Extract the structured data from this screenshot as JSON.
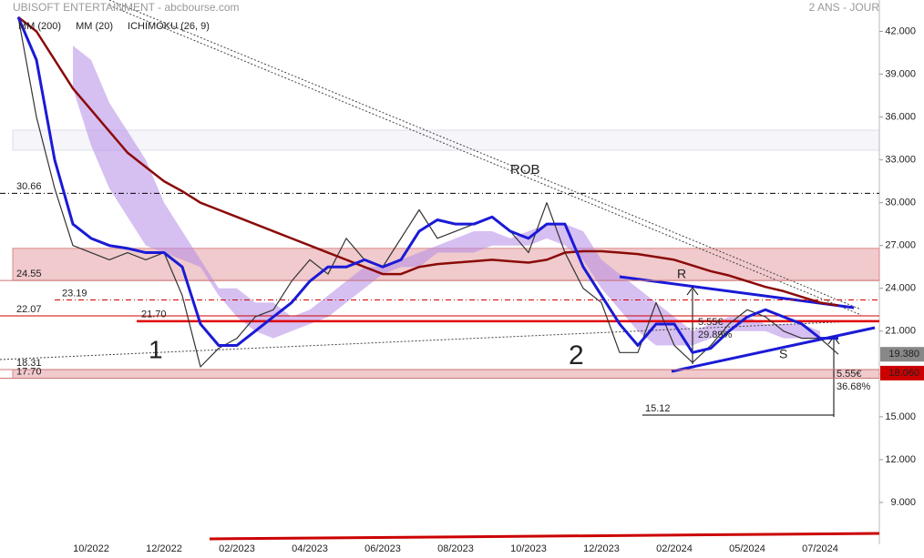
{
  "chart_data": {
    "type": "line",
    "title": "UBISOFT ENTERTAINMENT - abcbourse.com",
    "period": "2 ANS - JOUR",
    "categories": [
      null,
      null,
      null,
      null,
      "10/2022",
      null,
      null,
      null,
      "12/2022",
      null,
      null,
      null,
      "02/2023",
      null,
      null,
      null,
      "04/2023",
      null,
      null,
      null,
      "06/2023",
      null,
      null,
      null,
      "08/2023",
      null,
      null,
      null,
      "10/2023",
      null,
      null,
      null,
      "12/2023",
      null,
      null,
      null,
      "02/2024",
      null,
      null,
      null,
      "05/2024",
      null,
      null,
      null,
      "07/2024",
      null
    ],
    "ylim": [
      6,
      44.2
    ],
    "yticks": [
      {
        "value": 42,
        "label": "42.000"
      },
      {
        "value": 39,
        "label": "39.000"
      },
      {
        "value": 36,
        "label": "36.000"
      },
      {
        "value": 33,
        "label": "33.000"
      },
      {
        "value": 30,
        "label": "30.000"
      },
      {
        "value": 27,
        "label": "27.000"
      },
      {
        "value": 24,
        "label": "24.000"
      },
      {
        "value": 21,
        "label": "21.000"
      },
      {
        "value": 18,
        "label": "18.000"
      },
      {
        "value": 15,
        "label": "15.000"
      },
      {
        "value": 12,
        "label": "12.000"
      },
      {
        "value": 9,
        "label": "9.000"
      }
    ],
    "grid": false,
    "price": {
      "color": "#333333",
      "values": [
        43,
        36,
        31,
        27,
        26.5,
        26,
        26.5,
        26,
        26.5,
        23.5,
        18.5,
        19.8,
        20.5,
        22,
        22.5,
        24.5,
        26,
        25,
        27.5,
        26,
        25.5,
        27.5,
        29.5,
        27.5,
        28,
        28.5,
        29,
        28,
        26.5,
        30,
        26.5,
        24,
        23,
        19.5,
        19.5,
        23,
        20,
        18.8,
        20,
        21.5,
        22.5,
        22,
        21,
        20.5,
        20.5,
        19.38
      ]
    },
    "series": [
      {
        "name": "MM (200)",
        "color": "#8b0a0a",
        "values": [
          43,
          42,
          40,
          38,
          36.5,
          35,
          33.5,
          32.5,
          31.5,
          30.8,
          30,
          29.5,
          29,
          28.5,
          28,
          27.5,
          27,
          26.5,
          26,
          25.5,
          25,
          25,
          25.5,
          25.7,
          25.8,
          25.9,
          26,
          25.9,
          25.8,
          26,
          26.5,
          26.6,
          26.6,
          26.5,
          26.4,
          26.2,
          26,
          25.6,
          25.2,
          24.9,
          24.5,
          24.1,
          23.8,
          23.4,
          23,
          22.8
        ]
      },
      {
        "name": "MM (20)",
        "color": "#1a1ad6",
        "values": [
          43,
          40,
          33,
          28.5,
          27.5,
          27,
          26.8,
          26.5,
          26.5,
          25.5,
          21.5,
          20,
          20,
          21,
          22,
          23,
          24.5,
          25.5,
          25.5,
          26,
          25.5,
          26,
          28,
          28.8,
          28.5,
          28.5,
          29,
          28,
          27.5,
          28.5,
          28.5,
          25.5,
          23.5,
          21.5,
          20,
          21.5,
          21.5,
          19.5,
          19.8,
          21,
          22,
          22.5,
          22,
          21.5,
          20.5,
          20.5
        ]
      }
    ],
    "ichimoku": {
      "name": "ICHIMOKU (26, 9)",
      "color": "#b48be6",
      "text_color": "#2a6bd6",
      "span_a": [
        null,
        null,
        null,
        41,
        40,
        37,
        35,
        33,
        30,
        28,
        26,
        24,
        24,
        23,
        23,
        22,
        22.5,
        23.5,
        24.5,
        25.5,
        25.5,
        26,
        26.5,
        27,
        27.5,
        28,
        28,
        27.5,
        28,
        28.5,
        28.5,
        28,
        26,
        25,
        24,
        23,
        22,
        21,
        21.5,
        22,
        22,
        21.5,
        21.5,
        21.5,
        21,
        null
      ],
      "span_b": [
        null,
        null,
        null,
        38,
        34,
        31,
        29,
        27,
        26.5,
        26,
        25.5,
        23.5,
        22,
        21,
        20.5,
        21,
        21.5,
        22,
        23,
        24,
        25,
        25.5,
        25.5,
        26.5,
        26.5,
        26.5,
        27,
        27,
        27,
        27.5,
        27,
        26,
        24,
        22.5,
        21,
        20,
        20,
        20,
        20.5,
        21,
        21,
        21,
        20.5,
        20.5,
        20.5,
        null
      ]
    },
    "zones": [
      {
        "from": 24.55,
        "to": 26.8,
        "color": "#e9b3b6"
      },
      {
        "from": 17.7,
        "to": 18.31,
        "color": "#e9b3b6"
      }
    ],
    "levels": [
      {
        "value": 30.66,
        "label": "30.66",
        "color": "#000000",
        "style": "dashdot"
      },
      {
        "value": 24.55,
        "label": "24.55",
        "color": "#c77",
        "style": "solid"
      },
      {
        "value": 23.19,
        "label": "23.19",
        "color": "#d00000",
        "style": "dashdot"
      },
      {
        "value": 22.07,
        "label": "22.07",
        "color": "#d00000",
        "style": "solid"
      },
      {
        "value": 21.7,
        "label": "21.70",
        "color": "#e00000",
        "style": "thick"
      },
      {
        "value": 18.31,
        "label": "18.31",
        "color": "#c77",
        "style": "solid"
      },
      {
        "value": 17.7,
        "label": "17.70",
        "color": "#c77",
        "style": "solid"
      },
      {
        "value": 15.12,
        "label": "15.12",
        "color": "#000000",
        "style": "solid"
      }
    ],
    "annotations": [
      "ROB",
      "1",
      "2",
      "R",
      "S",
      "5.55€",
      "29.89%",
      "5.55€",
      "36.68%"
    ],
    "last_price": {
      "value": 19.38,
      "label": "19.380",
      "color": "#888888"
    },
    "low_price": {
      "value": 18.06,
      "label": "18.060",
      "color": "#cc0000"
    }
  }
}
